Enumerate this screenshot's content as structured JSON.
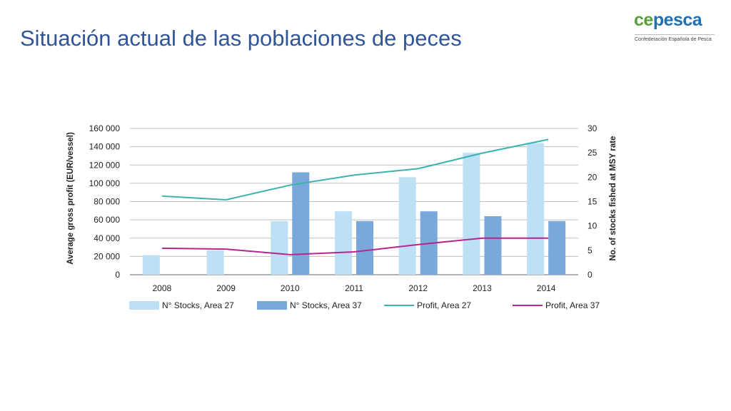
{
  "slide": {
    "title": "Situación actual de las poblaciones de peces"
  },
  "logo": {
    "word_part1": "ce",
    "word_part2": "pesca",
    "subtitle": "Confederación Española de Pesca",
    "colors": {
      "green": "#5a9e3a",
      "blue": "#1f6fb2"
    }
  },
  "chart_data": {
    "type": "bar",
    "categories": [
      "2008",
      "2009",
      "2010",
      "2011",
      "2012",
      "2013",
      "2014"
    ],
    "ylabel": "Average gross profit (EUR/vessel)",
    "y2label": "No. of stocks fished at MSY rate",
    "ylim": [
      0,
      160000
    ],
    "y2lim": [
      0,
      30
    ],
    "yticks": [
      0,
      20000,
      40000,
      60000,
      80000,
      100000,
      120000,
      140000,
      160000
    ],
    "ytick_labels": [
      "0",
      "20 000",
      "40 000",
      "60 000",
      "80 000",
      "100 000",
      "120 000",
      "140 000",
      "160 000"
    ],
    "y2ticks": [
      0,
      5,
      10,
      15,
      20,
      25,
      30
    ],
    "y2tick_labels": [
      "0",
      "5",
      "10",
      "15",
      "20",
      "25",
      "30"
    ],
    "grid": true,
    "legend_position": "bottom",
    "bar_series": [
      {
        "name": "N° Stocks, Area 27",
        "axis": "right",
        "color": "#bde0f5",
        "values": [
          4,
          5,
          11,
          13,
          20,
          25,
          27
        ]
      },
      {
        "name": "N° Stocks, Area 37",
        "axis": "right",
        "color": "#79a8da",
        "values": [
          null,
          null,
          21,
          11,
          13,
          12,
          11
        ]
      }
    ],
    "line_series": [
      {
        "name": "Profit, Area 27",
        "axis": "left",
        "color": "#3bb3ad",
        "values": [
          86000,
          82000,
          98000,
          109000,
          116000,
          133000,
          148000
        ]
      },
      {
        "name": "Profit, Area 37",
        "axis": "left",
        "color": "#b5268f",
        "values": [
          29000,
          28000,
          22000,
          25000,
          33000,
          40000,
          40000
        ]
      }
    ]
  }
}
